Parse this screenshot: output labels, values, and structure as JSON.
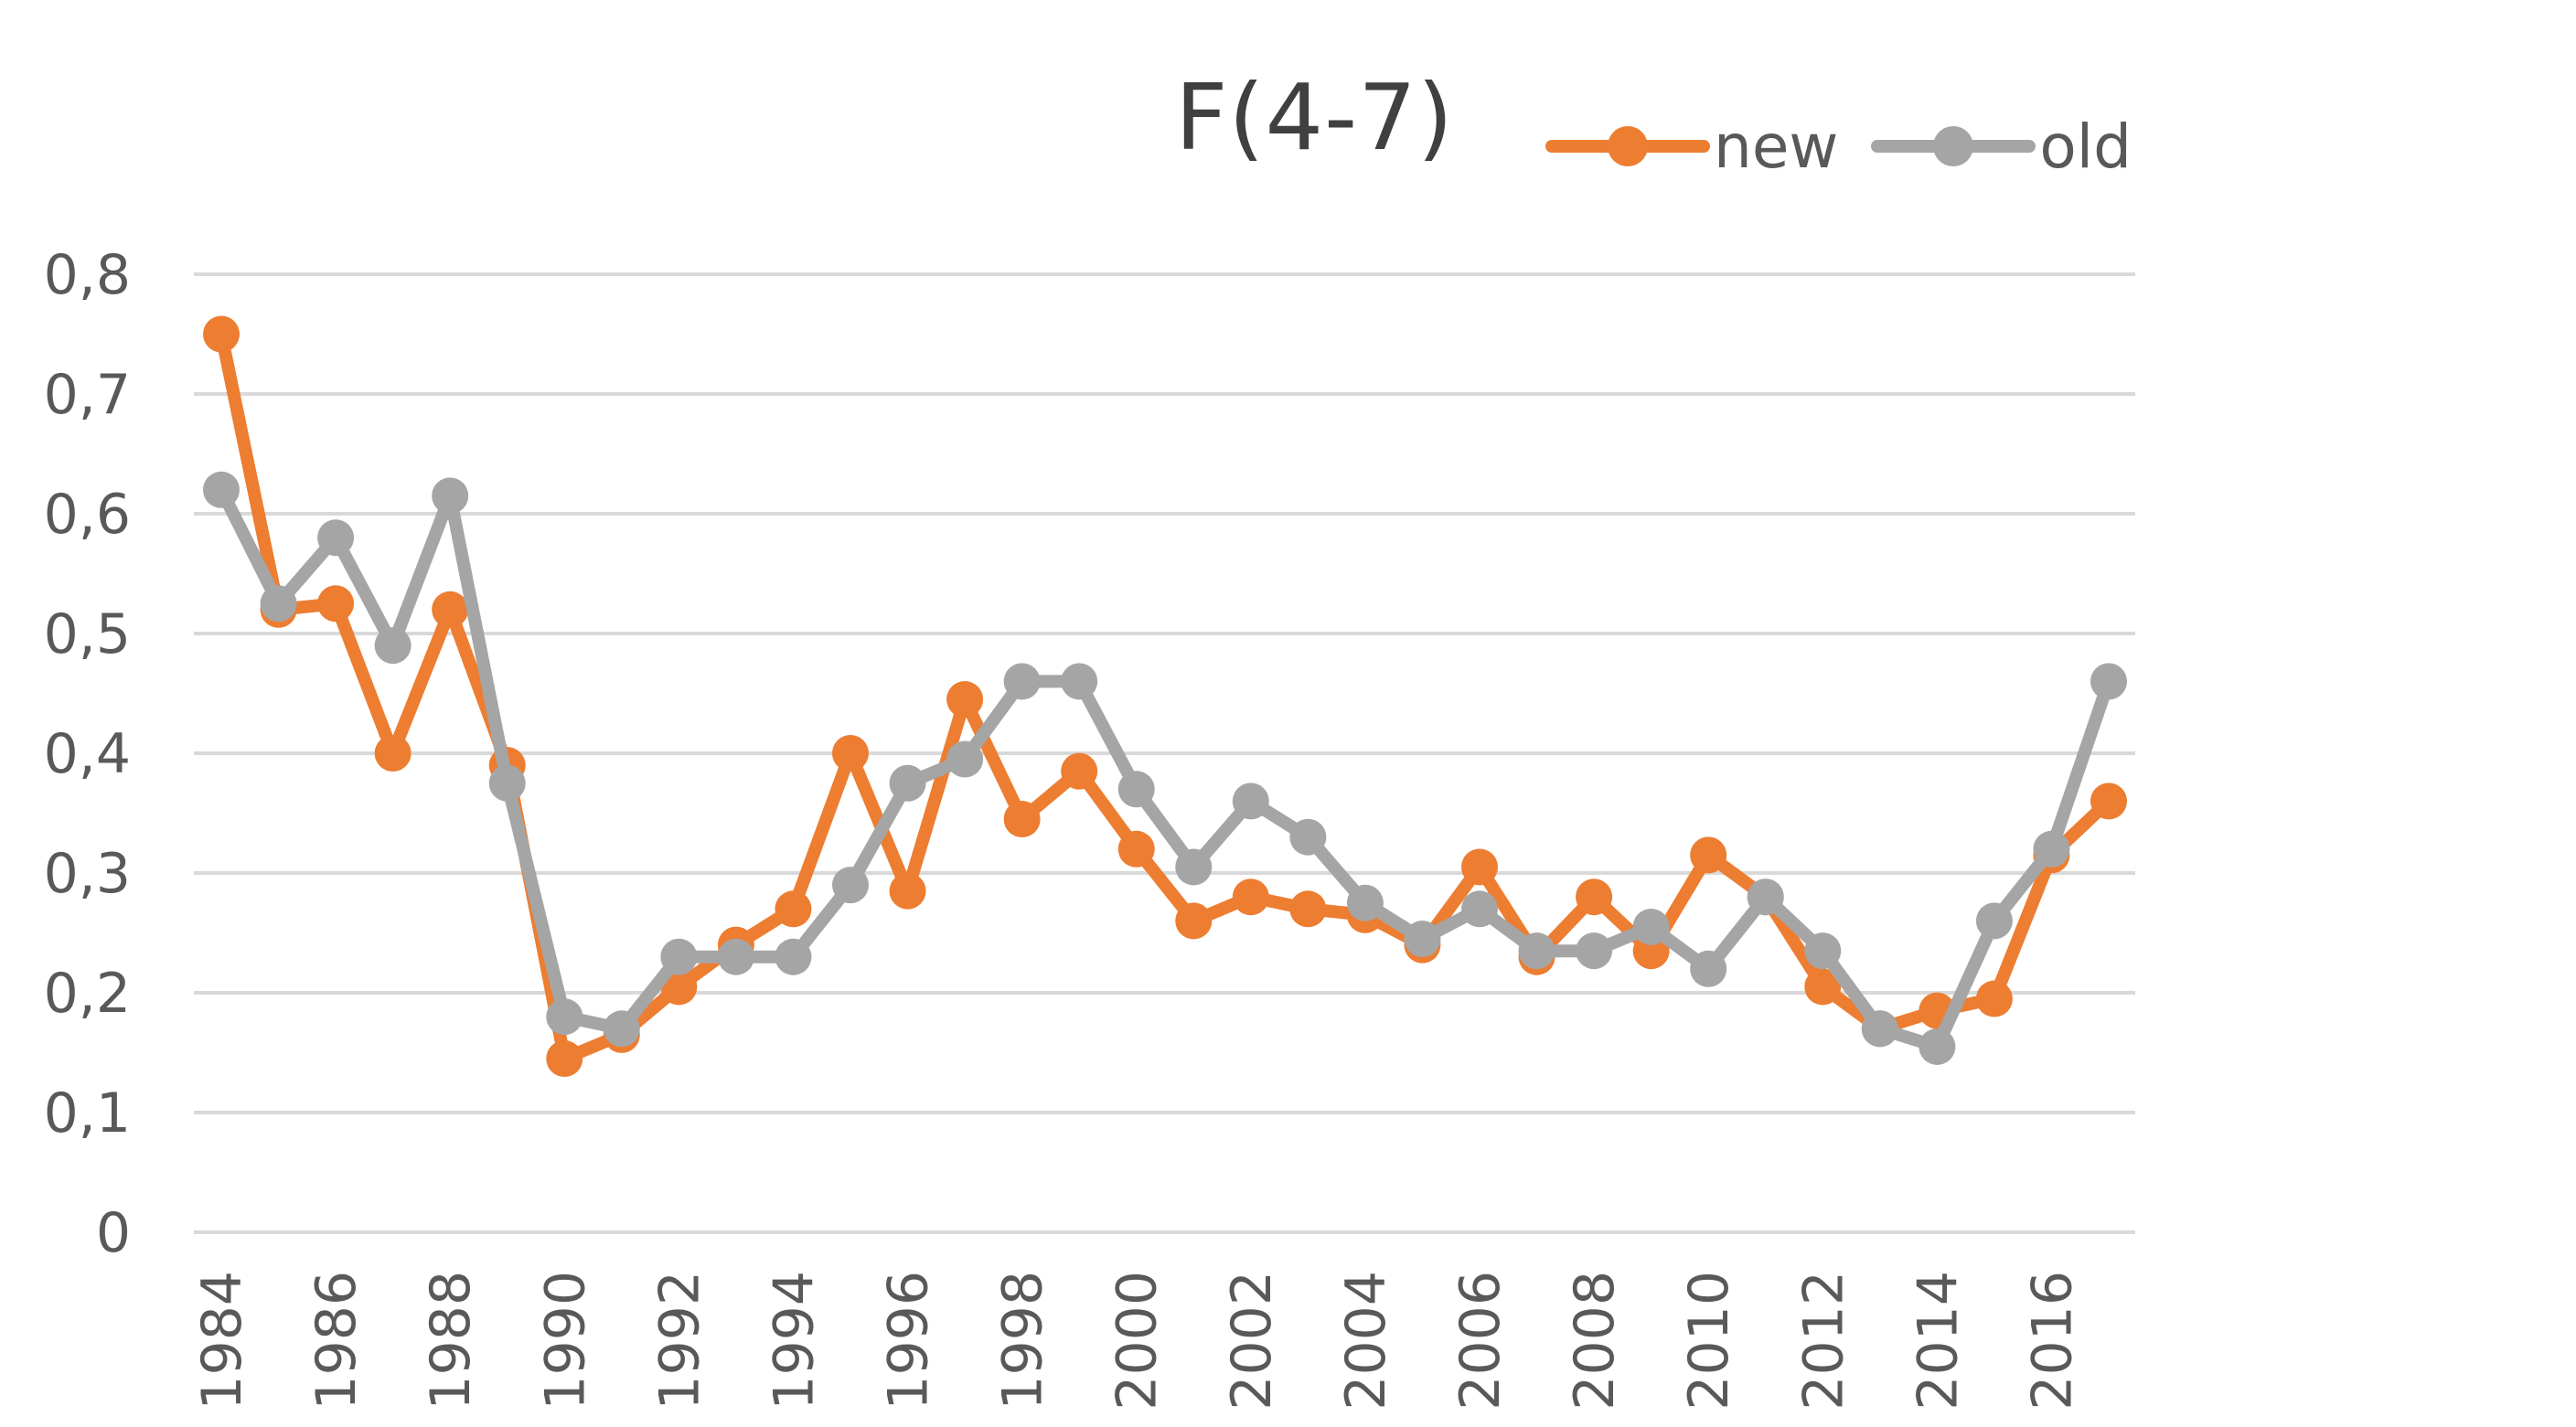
{
  "chart_data": {
    "type": "line",
    "title": "F(4-7)",
    "xlabel": "",
    "ylabel": "",
    "ylim": [
      0,
      0.8
    ],
    "y_ticks": [
      "0",
      "0,1",
      "0,2",
      "0,3",
      "0,4",
      "0,5",
      "0,6",
      "0,7",
      "0,8"
    ],
    "x": [
      1984,
      1985,
      1986,
      1987,
      1988,
      1989,
      1990,
      1991,
      1992,
      1993,
      1994,
      1995,
      1996,
      1997,
      1998,
      1999,
      2000,
      2001,
      2002,
      2003,
      2004,
      2005,
      2006,
      2007,
      2008,
      2009,
      2010,
      2011,
      2012,
      2013,
      2014,
      2015,
      2016,
      2017
    ],
    "x_tick_labels": [
      "1984",
      "1986",
      "1988",
      "1990",
      "1992",
      "1994",
      "1996",
      "1998",
      "2000",
      "2002",
      "2004",
      "2006",
      "2008",
      "2010",
      "2012",
      "2014",
      "2016"
    ],
    "grid": true,
    "legend_position": "top-right",
    "series": [
      {
        "name": "new",
        "color": "#ED7D31",
        "values": [
          0.75,
          0.52,
          0.525,
          0.4,
          0.52,
          0.39,
          0.145,
          0.165,
          0.205,
          0.24,
          0.27,
          0.4,
          0.285,
          0.445,
          0.345,
          0.385,
          0.32,
          0.26,
          0.28,
          0.27,
          0.265,
          0.24,
          0.305,
          0.23,
          0.28,
          0.235,
          0.315,
          0.28,
          0.205,
          0.17,
          0.185,
          0.195,
          0.315,
          0.36
        ]
      },
      {
        "name": "old",
        "color": "#A5A5A5",
        "values": [
          0.62,
          0.525,
          0.58,
          0.49,
          0.615,
          0.375,
          0.18,
          0.17,
          0.23,
          0.23,
          0.23,
          0.29,
          0.375,
          0.395,
          0.46,
          0.46,
          0.37,
          0.305,
          0.36,
          0.33,
          0.275,
          0.245,
          0.27,
          0.235,
          0.235,
          0.255,
          0.22,
          0.28,
          0.235,
          0.17,
          0.155,
          0.26,
          0.32,
          0.46
        ]
      }
    ]
  }
}
